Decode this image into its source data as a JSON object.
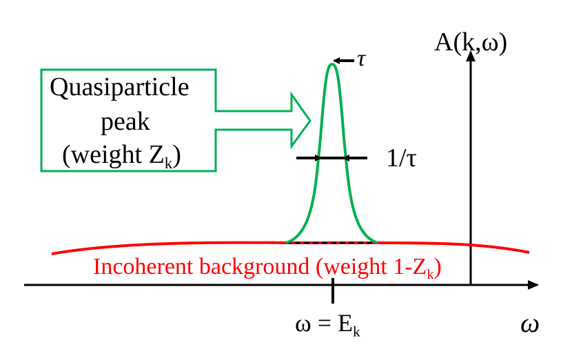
{
  "box": {
    "line1": "Quasiparticle",
    "line2": "peak",
    "line3_prefix": "(weight Z",
    "line3_sub": "k",
    "line3_suffix": ")"
  },
  "labels": {
    "tau": "τ",
    "width": "1/τ",
    "yaxis": "A(k,ω)",
    "xaxis": "ω",
    "tick_prefix": "ω = E",
    "tick_sub": "k",
    "background_prefix": "Incoherent background (weight 1-Z",
    "background_sub": "k",
    "background_suffix": ")"
  },
  "colors": {
    "peak": "#00b050",
    "background": "#ff0000",
    "axes": "#000000"
  }
}
